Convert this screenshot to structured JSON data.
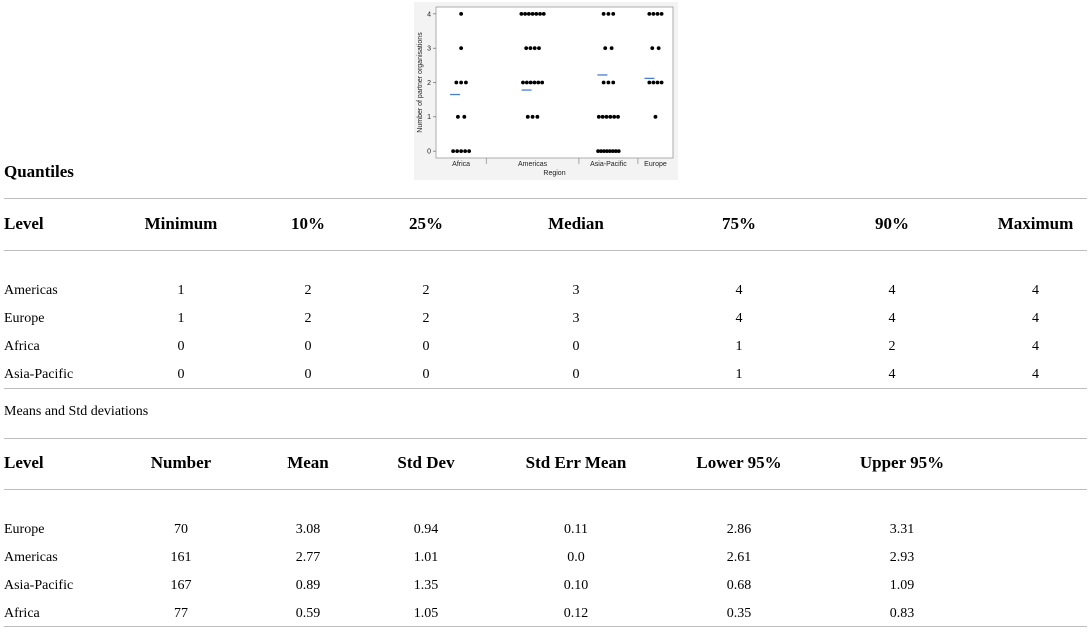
{
  "chart_data": {
    "type": "scatter",
    "xlabel": "Region",
    "ylabel": "Number of partner organisations",
    "categories": [
      "Africa",
      "Americas",
      "Asia-Pacific",
      "Europe"
    ],
    "yticks": [
      0,
      1,
      2,
      3,
      4
    ],
    "ylim": [
      -0.2,
      4.2
    ],
    "means": [
      0.59,
      2.77,
      0.89,
      3.08
    ],
    "mean_markers": [
      1.65,
      1.78,
      2.22,
      2.12
    ],
    "mean_color": "#4a7fd0",
    "point_color": "#000000",
    "points": {
      "Africa": [
        0,
        0,
        0,
        0,
        0,
        1,
        1,
        2,
        2,
        2,
        3,
        4
      ],
      "Americas": [
        1,
        1,
        1,
        2,
        2,
        2,
        2,
        2,
        2,
        3,
        3,
        3,
        3,
        4,
        4,
        4,
        4,
        4,
        4,
        4
      ],
      "Asia-Pacific": [
        0,
        0,
        0,
        0,
        0,
        0,
        0,
        0,
        1,
        1,
        1,
        1,
        1,
        1,
        2,
        2,
        2,
        3,
        3,
        4,
        4,
        4
      ],
      "Europe": [
        1,
        2,
        2,
        2,
        2,
        3,
        3,
        4,
        4,
        4,
        4
      ]
    }
  },
  "quantiles": {
    "title": "Quantiles",
    "headers": [
      "Level",
      "Minimum",
      "10%",
      "25%",
      "Median",
      "75%",
      "90%",
      "Maximum"
    ],
    "rows": [
      [
        "Americas",
        "1",
        "2",
        "2",
        "3",
        "4",
        "4",
        "4"
      ],
      [
        "Europe",
        "1",
        "2",
        "2",
        "3",
        "4",
        "4",
        "4"
      ],
      [
        "Africa",
        "0",
        "0",
        "0",
        "0",
        "1",
        "2",
        "4"
      ],
      [
        "Asia-Pacific",
        "0",
        "0",
        "0",
        "0",
        "1",
        "4",
        "4"
      ]
    ]
  },
  "means": {
    "title": "Means and Std deviations",
    "headers": [
      "Level",
      "Number",
      "Mean",
      "Std Dev",
      "Std Err Mean",
      "Lower 95%",
      "Upper 95%"
    ],
    "rows": [
      [
        "Europe",
        "70",
        "3.08",
        "0.94",
        "0.11",
        "2.86",
        "3.31"
      ],
      [
        "Americas",
        "161",
        "2.77",
        "1.01",
        "0.0",
        "2.61",
        "2.93"
      ],
      [
        "Asia-Pacific",
        "167",
        "0.89",
        "1.35",
        "0.10",
        "0.68",
        "1.09"
      ],
      [
        "Africa",
        "77",
        "0.59",
        "1.05",
        "0.12",
        "0.35",
        "0.83"
      ]
    ]
  }
}
